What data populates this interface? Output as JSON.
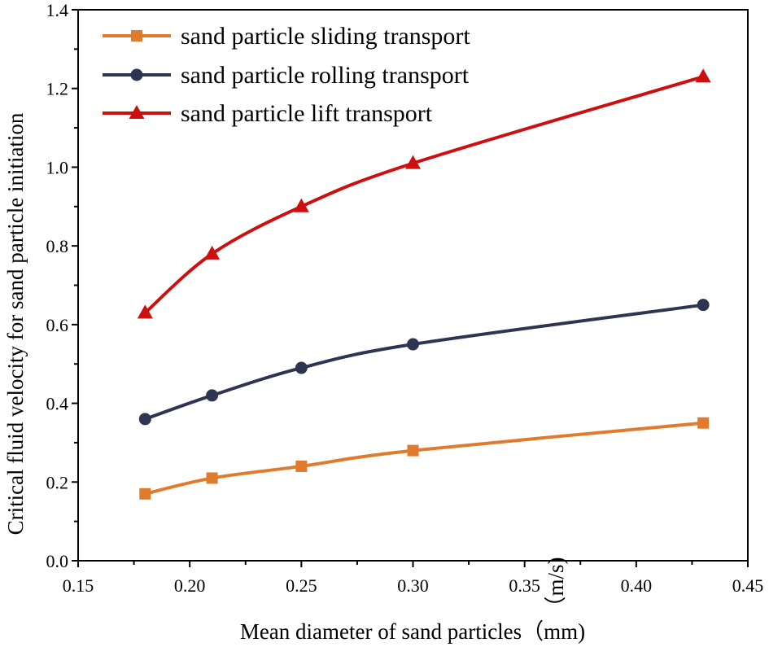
{
  "chart_data": {
    "type": "line",
    "xlabel": "Mean diameter of sand particles（mm)",
    "ylabel": "Critical fluid velocity for sand particle initiation",
    "ylabel_unit": "（m/s)",
    "xlim": [
      0.15,
      0.45
    ],
    "ylim": [
      0.0,
      1.4
    ],
    "x_ticks": [
      "0.15",
      "0.20",
      "0.25",
      "0.30",
      "0.35",
      "0.40",
      "0.45"
    ],
    "y_ticks": [
      "0.0",
      "0.2",
      "0.4",
      "0.6",
      "0.8",
      "1.0",
      "1.2",
      "1.4"
    ],
    "x": [
      0.18,
      0.21,
      0.25,
      0.3,
      0.43
    ],
    "grid": false,
    "legend_position": "top-left",
    "series": [
      {
        "name": "sand particle sliding transport",
        "values": [
          0.17,
          0.21,
          0.24,
          0.28,
          0.35
        ],
        "color": "#E07B2E",
        "marker": "square"
      },
      {
        "name": "sand particle rolling transport",
        "values": [
          0.36,
          0.42,
          0.49,
          0.55,
          0.65
        ],
        "color": "#2E3550",
        "marker": "circle"
      },
      {
        "name": "sand particle lift transport",
        "values": [
          0.63,
          0.78,
          0.9,
          1.01,
          1.23
        ],
        "color": "#CC1010",
        "marker": "triangle"
      }
    ]
  }
}
